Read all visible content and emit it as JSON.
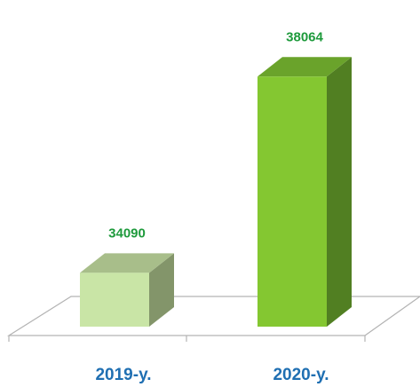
{
  "chart_data": {
    "type": "bar",
    "categories": [
      "2019-y.",
      "2020-y."
    ],
    "values": [
      34090,
      38064
    ],
    "data_labels": [
      "34090",
      "38064"
    ],
    "title": "",
    "xlabel": "",
    "ylabel": "",
    "ylim": [
      33000,
      38500
    ],
    "grid": false,
    "legend": "none",
    "style": "3d-bar"
  },
  "colors": {
    "bars": [
      {
        "front": "#c9e5a6",
        "side": "#83956a",
        "top": "#a8be8a"
      },
      {
        "front": "#84c731",
        "side": "#517f22",
        "top": "#6aa32b"
      }
    ],
    "value_label": "#1e9a3c",
    "category_label": "#1f6fb2",
    "floor_stroke": "#b3b3b3"
  }
}
